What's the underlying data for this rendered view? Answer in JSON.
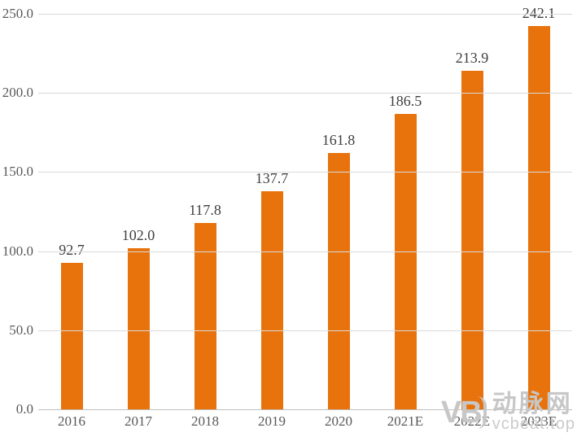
{
  "chart_data": {
    "type": "bar",
    "categories": [
      "2016",
      "2017",
      "2018",
      "2019",
      "2020",
      "2021E",
      "2022E",
      "2023E"
    ],
    "values": [
      92.7,
      102.0,
      117.8,
      137.7,
      161.8,
      186.5,
      213.9,
      242.1
    ],
    "value_labels": [
      "92.7",
      "102.0",
      "117.8",
      "137.7",
      "161.8",
      "186.5",
      "213.9",
      "242.1"
    ],
    "title": "",
    "xlabel": "",
    "ylabel": "",
    "ylim": [
      0,
      250
    ],
    "ytick_interval": 50,
    "ytick_labels_top_to_bottom": [
      "250.0",
      "200.0",
      "150.0",
      "100.0",
      "50.0",
      "0.0"
    ],
    "grid": "horizontal",
    "legend": "none",
    "bar_color": "#e8730d",
    "gridline_color": "#d9d9d9",
    "axis_line_color": "#bfbfbf",
    "value_label_color": "#3f3f3f",
    "tick_label_color": "#595959"
  },
  "watermark": {
    "logo": "VB",
    "name": "动脉网",
    "site": "vcbeat.top",
    "color": "#c7c7c7"
  }
}
